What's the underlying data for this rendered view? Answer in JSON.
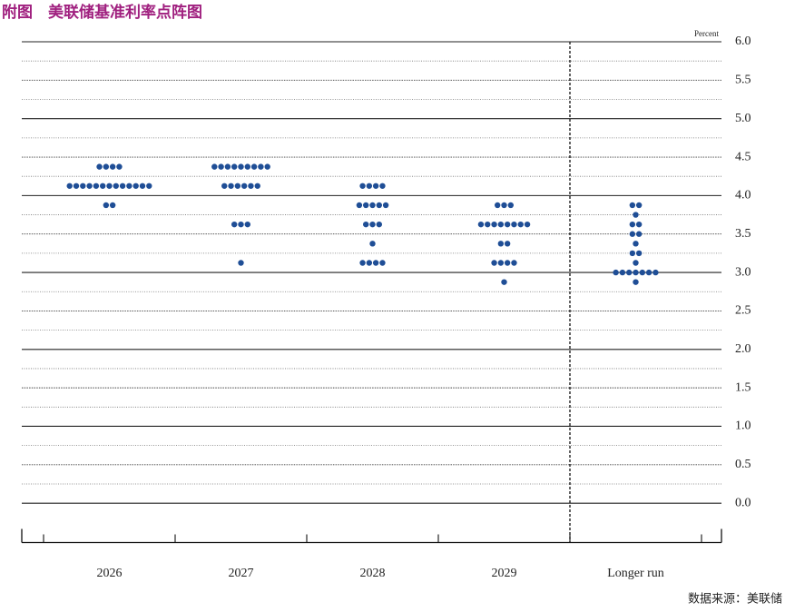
{
  "chart_data": {
    "type": "dot",
    "title": "附图　美联储基准利率点阵图",
    "y_unit_label": "Percent",
    "source": "数据来源：美联储",
    "categories": [
      "2026",
      "2027",
      "2028",
      "2029",
      "Longer run"
    ],
    "dots": [
      [
        4.375,
        4.375,
        4.375,
        4.375,
        4.125,
        4.125,
        4.125,
        4.125,
        4.125,
        4.125,
        4.125,
        4.125,
        4.125,
        4.125,
        4.125,
        4.125,
        4.125,
        3.875,
        3.875
      ],
      [
        4.375,
        4.375,
        4.375,
        4.375,
        4.375,
        4.375,
        4.375,
        4.375,
        4.375,
        4.125,
        4.125,
        4.125,
        4.125,
        4.125,
        4.125,
        3.625,
        3.625,
        3.625,
        3.125
      ],
      [
        4.125,
        4.125,
        4.125,
        4.125,
        3.875,
        3.875,
        3.875,
        3.875,
        3.875,
        3.625,
        3.625,
        3.625,
        3.375,
        3.125,
        3.125,
        3.125,
        3.125
      ],
      [
        3.875,
        3.875,
        3.875,
        3.625,
        3.625,
        3.625,
        3.625,
        3.625,
        3.625,
        3.625,
        3.625,
        3.375,
        3.375,
        3.125,
        3.125,
        3.125,
        3.125,
        2.875
      ],
      [
        3.875,
        3.875,
        3.75,
        3.625,
        3.625,
        3.5,
        3.5,
        3.375,
        3.25,
        3.25,
        3.125,
        3.0,
        3.0,
        3.0,
        3.0,
        3.0,
        3.0,
        3.0,
        2.875
      ]
    ],
    "color": "#1f4e96",
    "ylim": [
      -0.5,
      6.0
    ],
    "yticks": [
      {
        "value": 6,
        "label": "6.0"
      },
      5.5,
      {
        "value": 5,
        "label": "5.0"
      },
      4.5,
      {
        "value": 4,
        "label": "4.0"
      },
      3.5,
      {
        "value": 3,
        "label": "3.0"
      },
      2.5,
      {
        "value": 2,
        "label": "2.0"
      },
      1.5,
      {
        "value": 1,
        "label": "1.0"
      },
      0.5,
      {
        "value": 0,
        "label": "0.0"
      }
    ],
    "minor_yticks": [
      5.75,
      5.25,
      4.75,
      4.25,
      3.75,
      3.25,
      2.75,
      2.25,
      1.75,
      1.25,
      0.75,
      0.25
    ],
    "grid": true
  }
}
